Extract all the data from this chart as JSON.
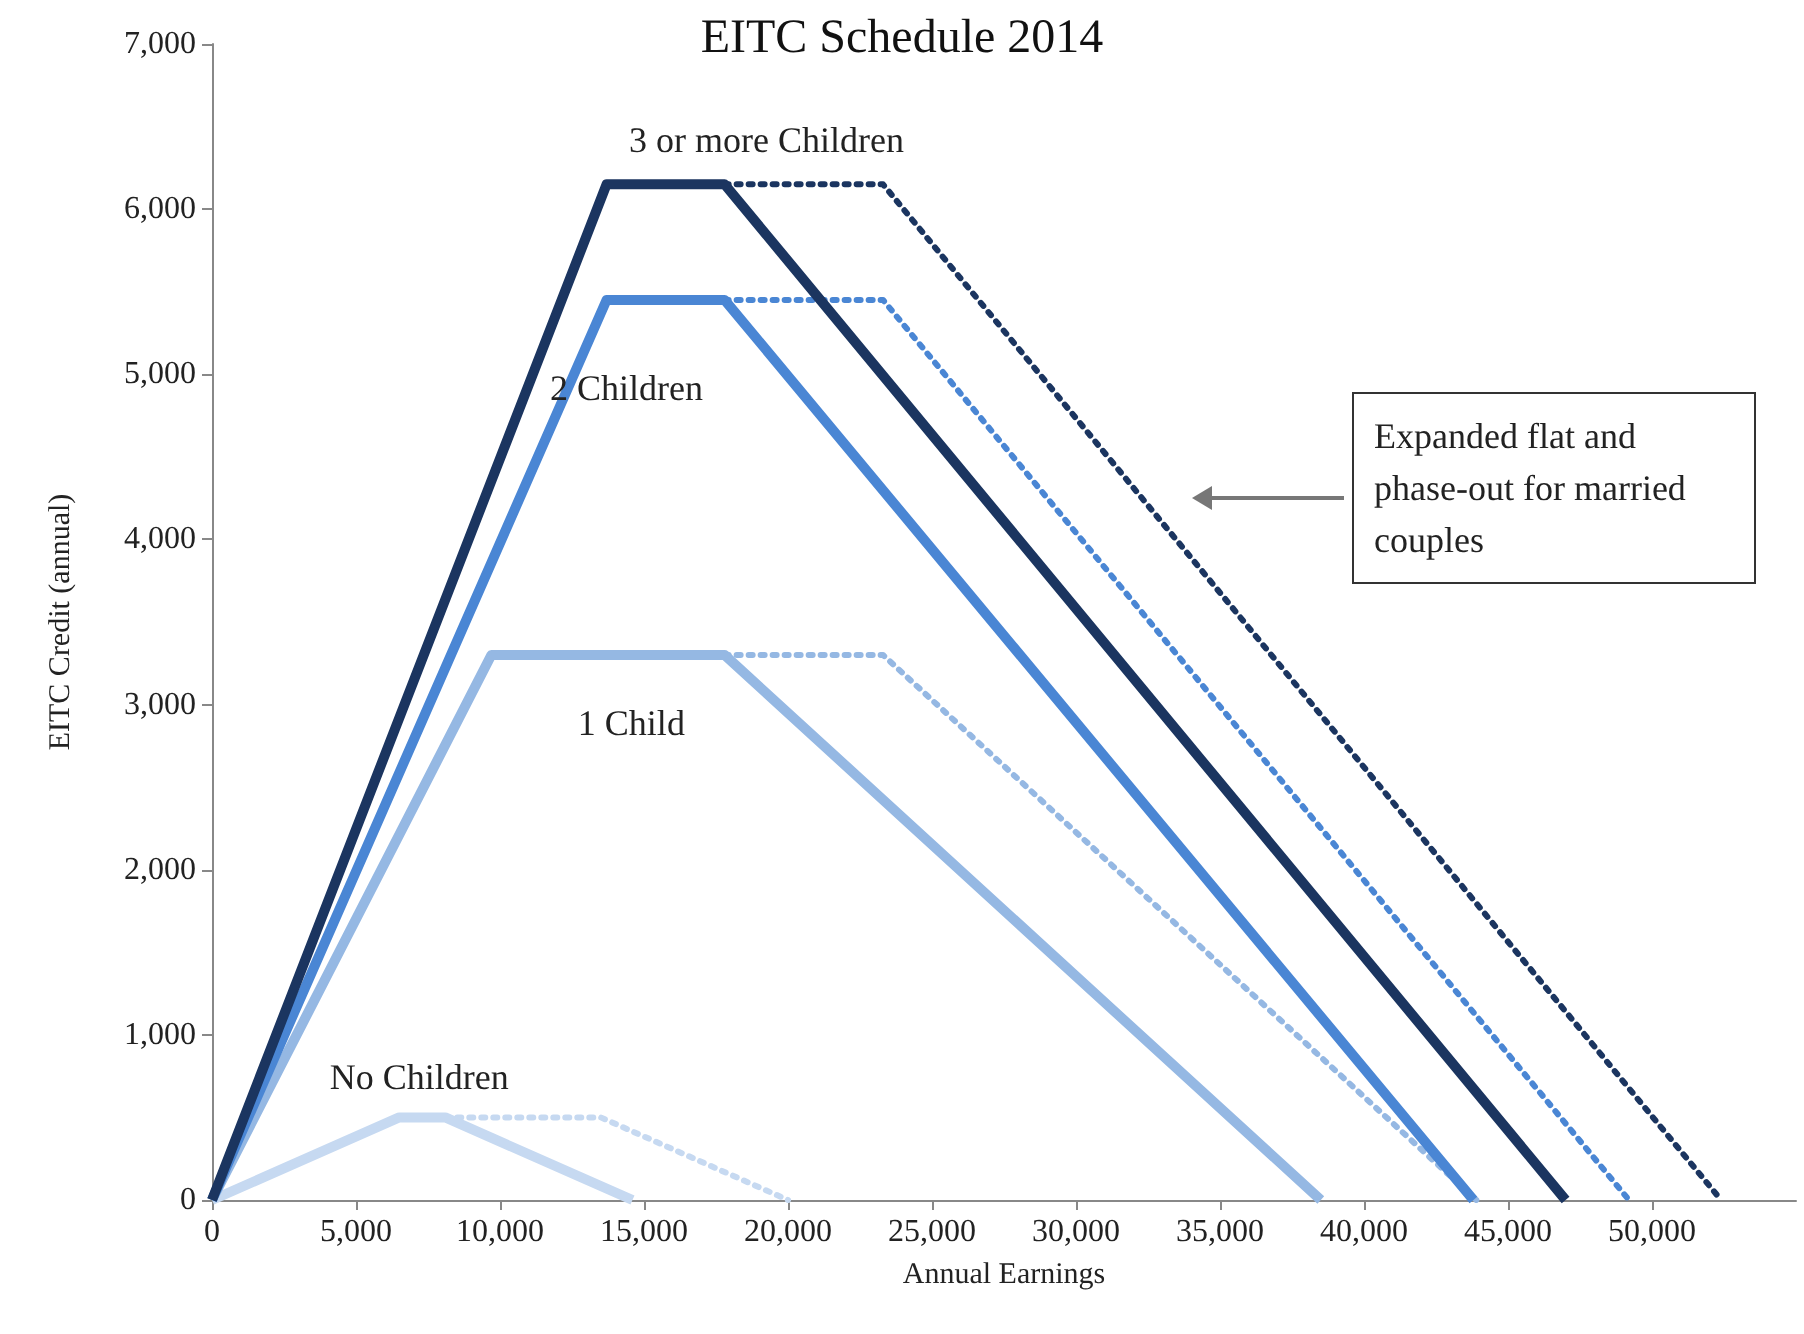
{
  "chart_data": {
    "type": "line",
    "title": "EITC Schedule 2014",
    "xlabel": "Annual Earnings",
    "ylabel": "EITC Credit (annual)",
    "xlim": [
      0,
      55000
    ],
    "xticks": [
      0,
      {
        "value": 5000,
        "label": "5,000"
      },
      {
        "value": 10000,
        "label": "10,000"
      },
      {
        "value": 15000,
        "label": "15,000"
      },
      {
        "value": 20000,
        "label": "20,000"
      },
      {
        "value": 25000,
        "label": "25,000"
      },
      {
        "value": 30000,
        "label": "30,000"
      },
      {
        "value": 35000,
        "label": "35,000"
      },
      {
        "value": 40000,
        "label": "40,000"
      },
      {
        "value": 45000,
        "label": "45,000"
      },
      {
        "value": 50000,
        "label": "50,000"
      }
    ],
    "ylim": [
      0,
      7000
    ],
    "yticks": [
      0,
      {
        "value": 1000,
        "label": "1,000"
      },
      {
        "value": 2000,
        "label": "2,000"
      },
      {
        "value": 3000,
        "label": "3,000"
      },
      {
        "value": 4000,
        "label": "4,000"
      },
      {
        "value": 5000,
        "label": "5,000"
      },
      {
        "value": 6000,
        "label": "6,000"
      },
      {
        "value": 7000,
        "label": "7,000"
      }
    ],
    "grid": false,
    "legend": false,
    "marker": "none",
    "annotations": [
      "Expanded flat and phase-out for married couples"
    ],
    "series": [
      {
        "name": "No Children",
        "color": "#c6d9f1",
        "x": [
          0,
          6500,
          8100,
          14600
        ],
        "values": [
          0,
          500,
          500,
          0
        ]
      },
      {
        "color": "#c6d9f1",
        "line_style": "dotted",
        "x": [
          8100,
          13500,
          20000
        ],
        "values": [
          500,
          500,
          0
        ]
      },
      {
        "name": "1 Child",
        "color": "#95b8e3",
        "x": [
          0,
          9700,
          17800,
          38500
        ],
        "values": [
          0,
          3300,
          3300,
          0
        ]
      },
      {
        "color": "#95b8e3",
        "line_style": "dotted",
        "x": [
          17800,
          23300,
          43900
        ],
        "values": [
          3300,
          3300,
          0
        ]
      },
      {
        "name": "2 Children",
        "color": "#4a86d4",
        "x": [
          0,
          13700,
          17800,
          43800
        ],
        "values": [
          0,
          5450,
          5450,
          0
        ]
      },
      {
        "color": "#4a86d4",
        "line_style": "dotted",
        "x": [
          17800,
          23300,
          49200
        ],
        "values": [
          5450,
          5450,
          0
        ]
      },
      {
        "name": "3 or more Children",
        "color": "#1b3560",
        "x": [
          0,
          13700,
          17800,
          47000
        ],
        "values": [
          0,
          6150,
          6150,
          0
        ]
      },
      {
        "color": "#1b3560",
        "line_style": "dotted",
        "x": [
          17800,
          23300,
          52400
        ],
        "values": [
          6150,
          6150,
          0
        ]
      }
    ]
  }
}
